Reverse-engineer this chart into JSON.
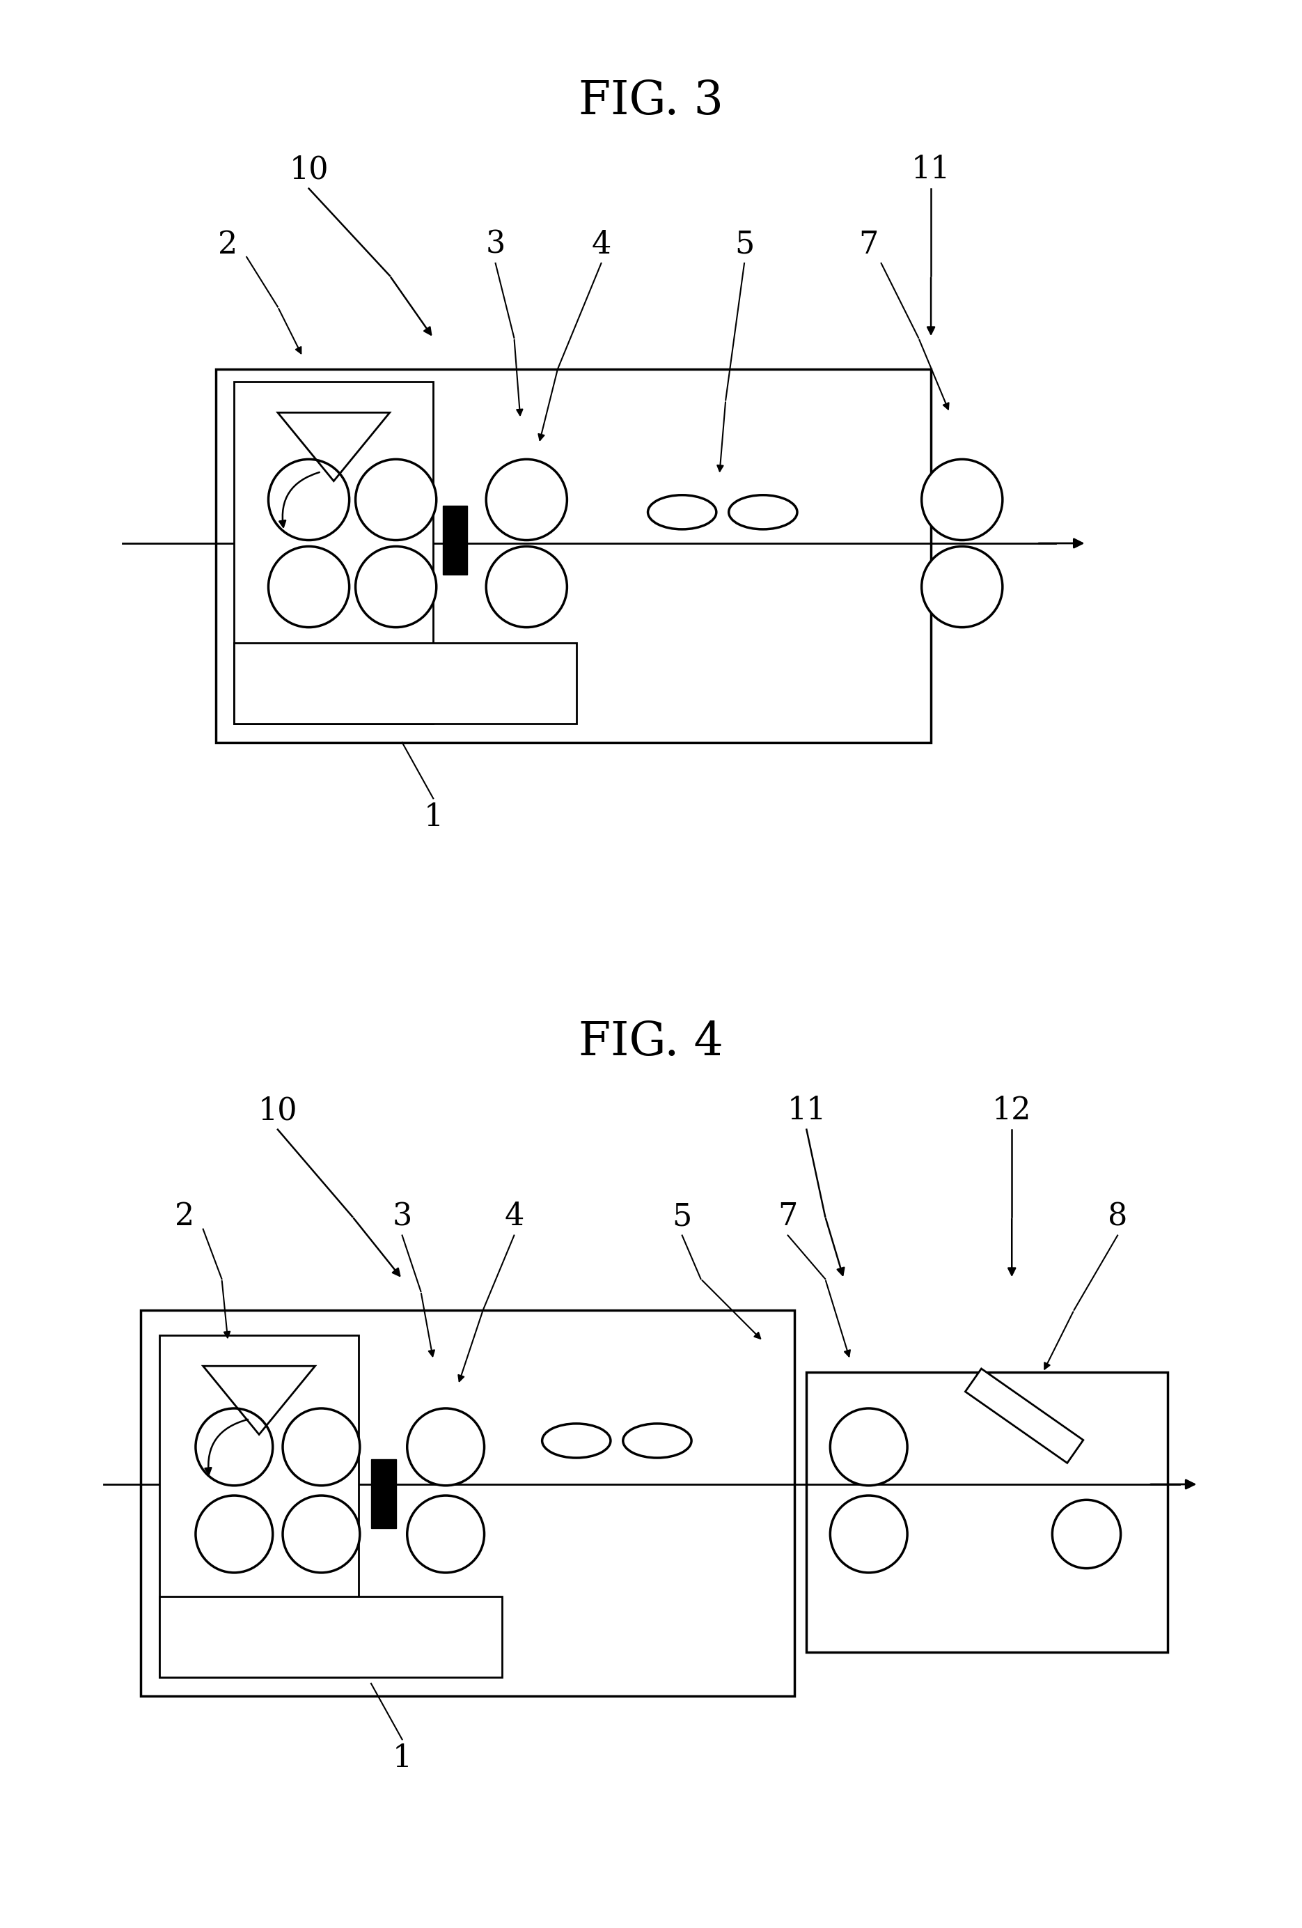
{
  "fig3_title": "FIG. 3",
  "fig4_title": "FIG. 4",
  "bg_color": "#ffffff",
  "title_fontsize": 48,
  "label_fontsize": 32
}
